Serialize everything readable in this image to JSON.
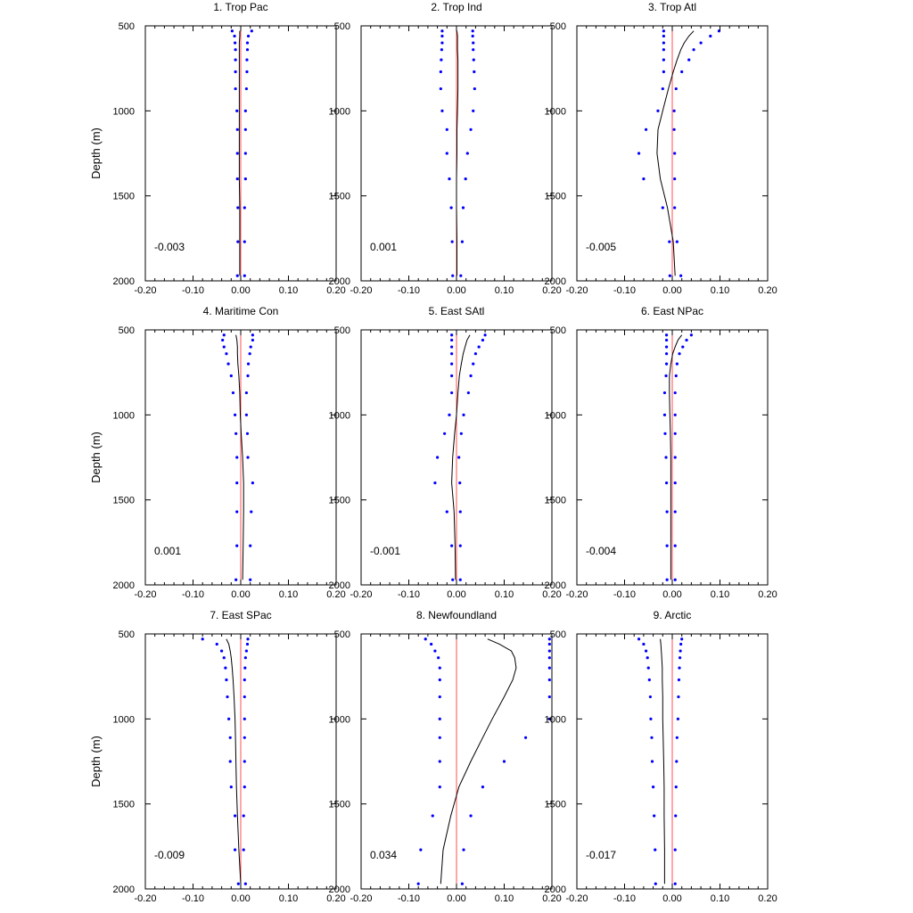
{
  "chart_data": {
    "type": "line",
    "layout": "3x3 grid of panels",
    "xlim": [
      -0.2,
      0.2
    ],
    "ylim": [
      2000,
      500
    ],
    "y_inverted": true,
    "xticks": [
      -0.2,
      -0.1,
      0.0,
      0.1,
      0.2
    ],
    "xtick_labels": [
      "-0.20",
      "-0.10",
      "0.00",
      "0.10",
      "0.20"
    ],
    "yticks": [
      500,
      1000,
      1500,
      2000
    ],
    "ytick_labels": [
      "500",
      "1000",
      "1500",
      "2000"
    ],
    "ylabel": "Depth (m)",
    "xlabel": "",
    "grid": false,
    "colors": {
      "profile": "#000000",
      "zero_line": "#ff4d4d",
      "spread_dots": "#0000ff",
      "frame": "#000000"
    },
    "depths": [
      530,
      560,
      600,
      640,
      700,
      770,
      870,
      1000,
      1110,
      1250,
      1400,
      1570,
      1770,
      1970
    ],
    "panels": [
      {
        "title": "1. Trop Pac",
        "annotation": "-0.003",
        "profile": [
          -0.002,
          -0.002,
          -0.003,
          -0.003,
          -0.003,
          -0.003,
          -0.003,
          -0.003,
          -0.003,
          -0.003,
          -0.003,
          -0.002,
          -0.002,
          -0.002
        ],
        "lower": [
          -0.018,
          -0.013,
          -0.012,
          -0.011,
          -0.011,
          -0.011,
          -0.011,
          -0.008,
          -0.007,
          -0.007,
          -0.007,
          -0.006,
          -0.006,
          -0.007
        ],
        "upper": [
          0.023,
          0.016,
          0.014,
          0.014,
          0.013,
          0.013,
          0.012,
          0.01,
          0.01,
          0.01,
          0.01,
          0.008,
          0.008,
          0.008
        ]
      },
      {
        "title": "2. Trop Ind",
        "annotation": "0.001",
        "profile": [
          0.001,
          0.002,
          0.002,
          0.002,
          0.003,
          0.003,
          0.003,
          0.002,
          0.001,
          0.001,
          0.0,
          0.0,
          0.001,
          0.001
        ],
        "lower": [
          -0.03,
          -0.03,
          -0.03,
          -0.031,
          -0.032,
          -0.033,
          -0.033,
          -0.03,
          -0.02,
          -0.02,
          -0.015,
          -0.011,
          -0.009,
          -0.008
        ],
        "upper": [
          0.034,
          0.034,
          0.035,
          0.035,
          0.036,
          0.037,
          0.038,
          0.035,
          0.03,
          0.023,
          0.019,
          0.014,
          0.012,
          0.009
        ]
      },
      {
        "title": "3. Trop Atl",
        "annotation": "-0.005",
        "profile": [
          0.045,
          0.035,
          0.025,
          0.018,
          0.01,
          0.002,
          -0.008,
          -0.02,
          -0.03,
          -0.032,
          -0.025,
          -0.01,
          0.002,
          0.006
        ],
        "lower": [
          -0.018,
          -0.018,
          -0.018,
          -0.018,
          -0.018,
          -0.018,
          -0.02,
          -0.03,
          -0.055,
          -0.07,
          -0.06,
          -0.02,
          -0.006,
          -0.005
        ],
        "upper": [
          0.098,
          0.08,
          0.06,
          0.045,
          0.035,
          0.02,
          0.008,
          0.004,
          0.004,
          0.005,
          0.005,
          0.005,
          0.01,
          0.018
        ]
      },
      {
        "title": "4. Maritime Con",
        "annotation": "0.001",
        "profile": [
          -0.01,
          -0.008,
          -0.007,
          -0.007,
          -0.006,
          -0.004,
          -0.002,
          -0.001,
          0.001,
          0.004,
          0.006,
          0.006,
          0.005,
          0.004
        ],
        "lower": [
          -0.035,
          -0.038,
          -0.035,
          -0.03,
          -0.026,
          -0.02,
          -0.016,
          -0.012,
          -0.01,
          -0.008,
          -0.008,
          -0.008,
          -0.008,
          -0.01
        ],
        "upper": [
          0.025,
          0.025,
          0.021,
          0.019,
          0.016,
          0.015,
          0.012,
          0.012,
          0.014,
          0.015,
          0.025,
          0.022,
          0.02,
          0.02
        ]
      },
      {
        "title": "5. East SAtl",
        "annotation": "-0.001",
        "profile": [
          0.028,
          0.022,
          0.018,
          0.014,
          0.01,
          0.006,
          0.003,
          0.0,
          -0.004,
          -0.008,
          -0.01,
          -0.005,
          -0.003,
          -0.002
        ],
        "lower": [
          -0.01,
          -0.01,
          -0.01,
          -0.01,
          -0.01,
          -0.01,
          -0.01,
          -0.015,
          -0.025,
          -0.04,
          -0.045,
          -0.02,
          -0.01,
          -0.008
        ],
        "upper": [
          0.06,
          0.055,
          0.047,
          0.04,
          0.035,
          0.03,
          0.025,
          0.015,
          0.01,
          0.005,
          0.007,
          0.008,
          0.008,
          0.008
        ]
      },
      {
        "title": "6. East NPac",
        "annotation": "-0.004",
        "profile": [
          0.02,
          0.012,
          0.006,
          0.001,
          -0.003,
          -0.006,
          -0.006,
          -0.005,
          -0.004,
          -0.003,
          -0.003,
          -0.003,
          -0.003,
          -0.003
        ],
        "lower": [
          -0.012,
          -0.012,
          -0.012,
          -0.012,
          -0.012,
          -0.013,
          -0.016,
          -0.016,
          -0.015,
          -0.013,
          -0.012,
          -0.011,
          -0.011,
          -0.011
        ],
        "upper": [
          0.04,
          0.03,
          0.022,
          0.015,
          0.01,
          0.008,
          0.006,
          0.006,
          0.006,
          0.006,
          0.006,
          0.006,
          0.006,
          0.006
        ]
      },
      {
        "title": "7. East SPac",
        "annotation": "-0.009",
        "profile": [
          -0.03,
          -0.025,
          -0.022,
          -0.02,
          -0.018,
          -0.016,
          -0.014,
          -0.012,
          -0.011,
          -0.01,
          -0.009,
          -0.007,
          -0.004,
          0.0
        ],
        "lower": [
          -0.08,
          -0.05,
          -0.04,
          -0.035,
          -0.032,
          -0.03,
          -0.028,
          -0.025,
          -0.022,
          -0.022,
          -0.02,
          -0.012,
          -0.012,
          -0.005
        ],
        "upper": [
          0.015,
          0.014,
          0.012,
          0.01,
          0.009,
          0.008,
          0.008,
          0.008,
          0.008,
          0.008,
          0.008,
          0.006,
          0.006,
          0.01
        ]
      },
      {
        "title": "8. Newfoundland",
        "annotation": "0.034",
        "profile": [
          0.065,
          0.09,
          0.115,
          0.122,
          0.125,
          0.118,
          0.1,
          0.075,
          0.055,
          0.03,
          0.005,
          -0.012,
          -0.028,
          -0.033
        ],
        "lower": [
          -0.065,
          -0.053,
          -0.045,
          -0.038,
          -0.035,
          -0.035,
          -0.035,
          -0.035,
          -0.035,
          -0.035,
          -0.035,
          -0.05,
          -0.075,
          -0.08
        ],
        "upper": [
          0.195,
          0.195,
          0.195,
          0.195,
          0.195,
          0.195,
          0.195,
          0.195,
          0.145,
          0.1,
          0.055,
          0.03,
          0.015,
          0.012
        ]
      },
      {
        "title": "9. Arctic",
        "annotation": "-0.017",
        "profile": [
          -0.025,
          -0.024,
          -0.023,
          -0.022,
          -0.021,
          -0.021,
          -0.02,
          -0.02,
          -0.019,
          -0.018,
          -0.017,
          -0.017,
          -0.016,
          -0.016
        ],
        "lower": [
          -0.07,
          -0.06,
          -0.055,
          -0.052,
          -0.05,
          -0.048,
          -0.046,
          -0.045,
          -0.043,
          -0.042,
          -0.04,
          -0.038,
          -0.036,
          -0.035
        ],
        "upper": [
          0.02,
          0.018,
          0.017,
          0.016,
          0.015,
          0.014,
          0.013,
          0.012,
          0.01,
          0.009,
          0.008,
          0.007,
          0.006,
          0.006
        ]
      }
    ]
  }
}
